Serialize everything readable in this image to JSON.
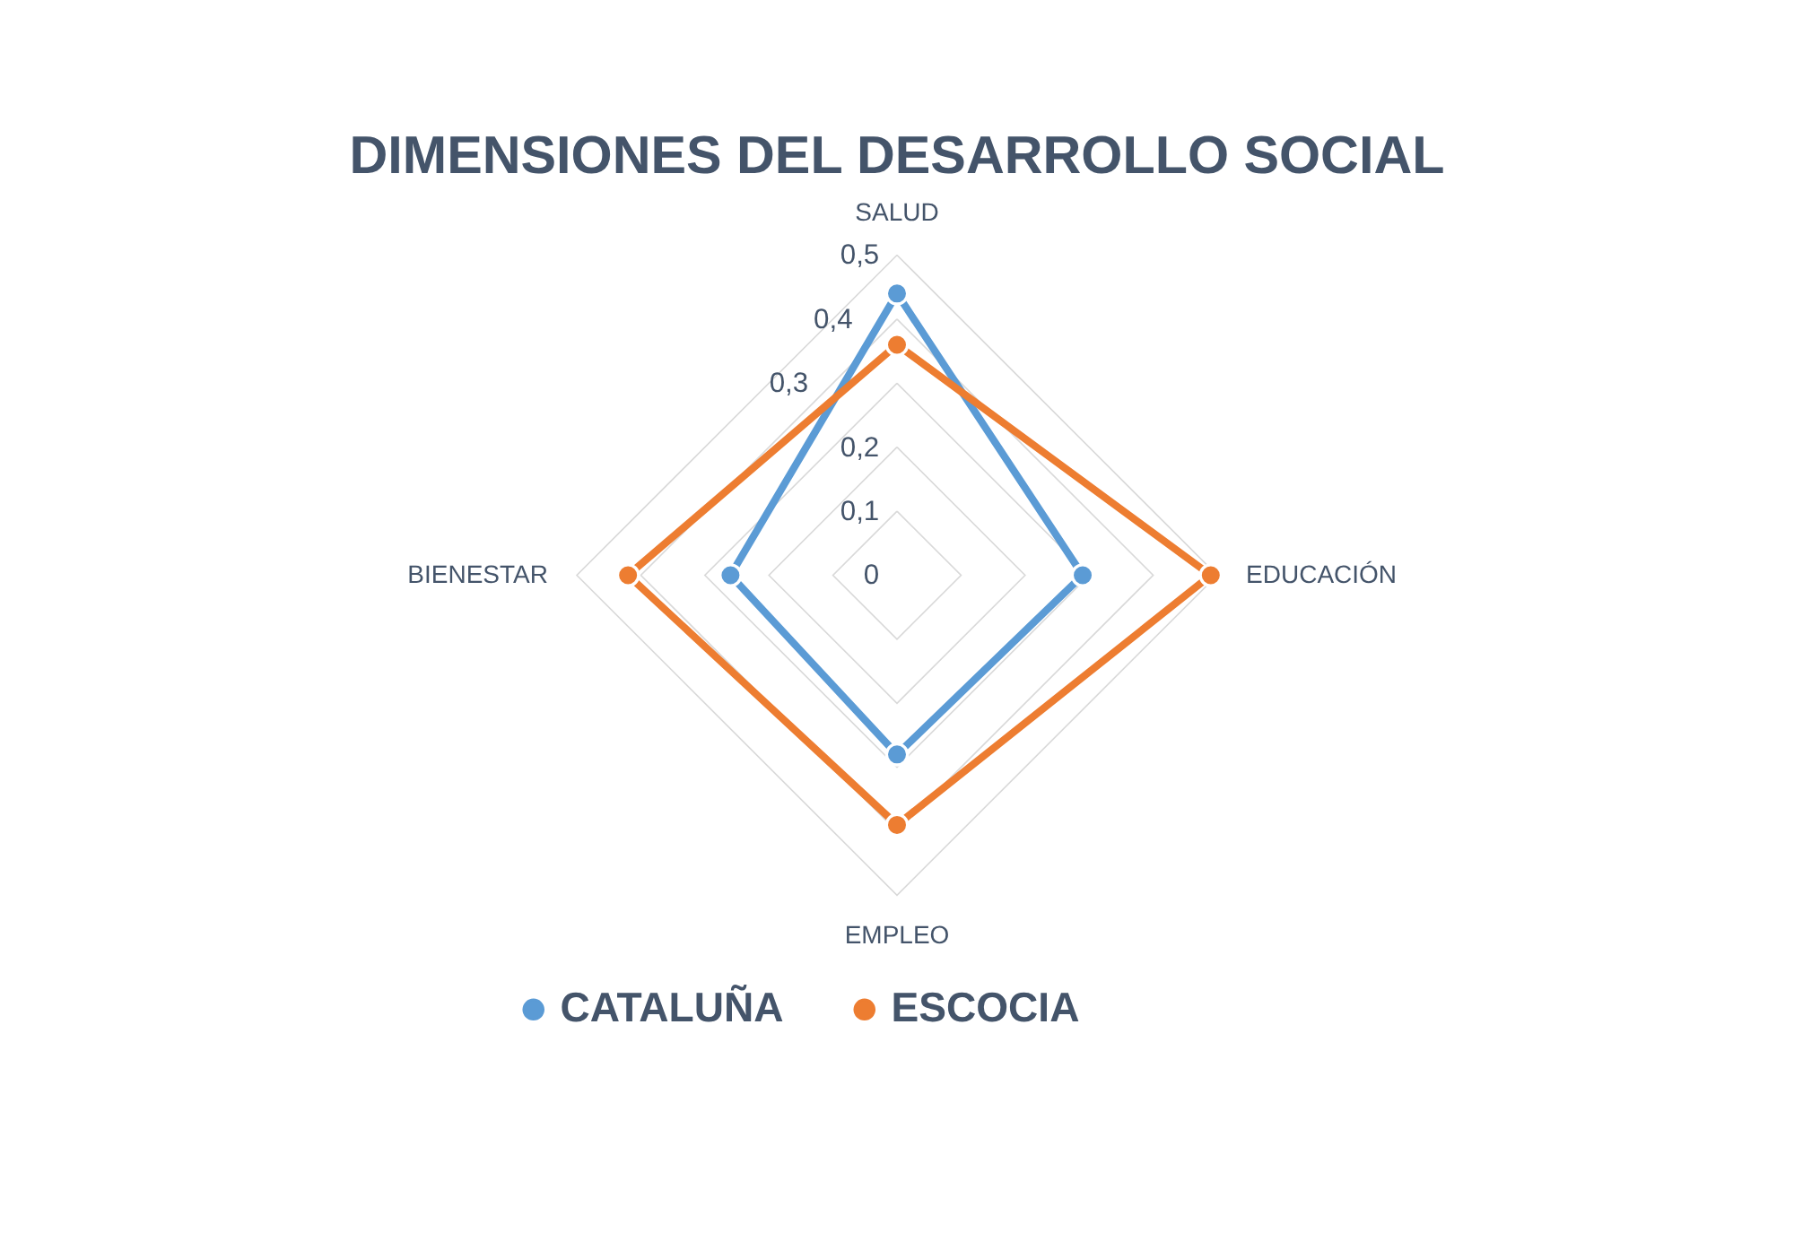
{
  "chart_data": {
    "type": "radar",
    "title": "DIMENSIONES DEL DESARROLLO SOCIAL",
    "categories": [
      "SALUD",
      "EDUCACIÓN",
      "EMPLEO",
      "BIENESTAR"
    ],
    "series": [
      {
        "name": "CATALUÑA",
        "color": "#5b9bd5",
        "values": [
          0.44,
          0.29,
          0.28,
          0.26
        ]
      },
      {
        "name": "ESCOCIA",
        "color": "#ed7d31",
        "values": [
          0.36,
          0.49,
          0.39,
          0.42
        ]
      }
    ],
    "ylim": [
      0,
      0.5
    ],
    "yticks": [
      {
        "value": 0,
        "label": "0"
      },
      {
        "value": 0.1,
        "label": "0,1"
      },
      {
        "value": 0.2,
        "label": "0,2"
      },
      {
        "value": 0.3,
        "label": "0,3"
      },
      {
        "value": 0.4,
        "label": "0,4"
      },
      {
        "value": 0.5,
        "label": "0,5"
      }
    ],
    "grid": true,
    "legend": "bottom",
    "marker": "circle"
  }
}
